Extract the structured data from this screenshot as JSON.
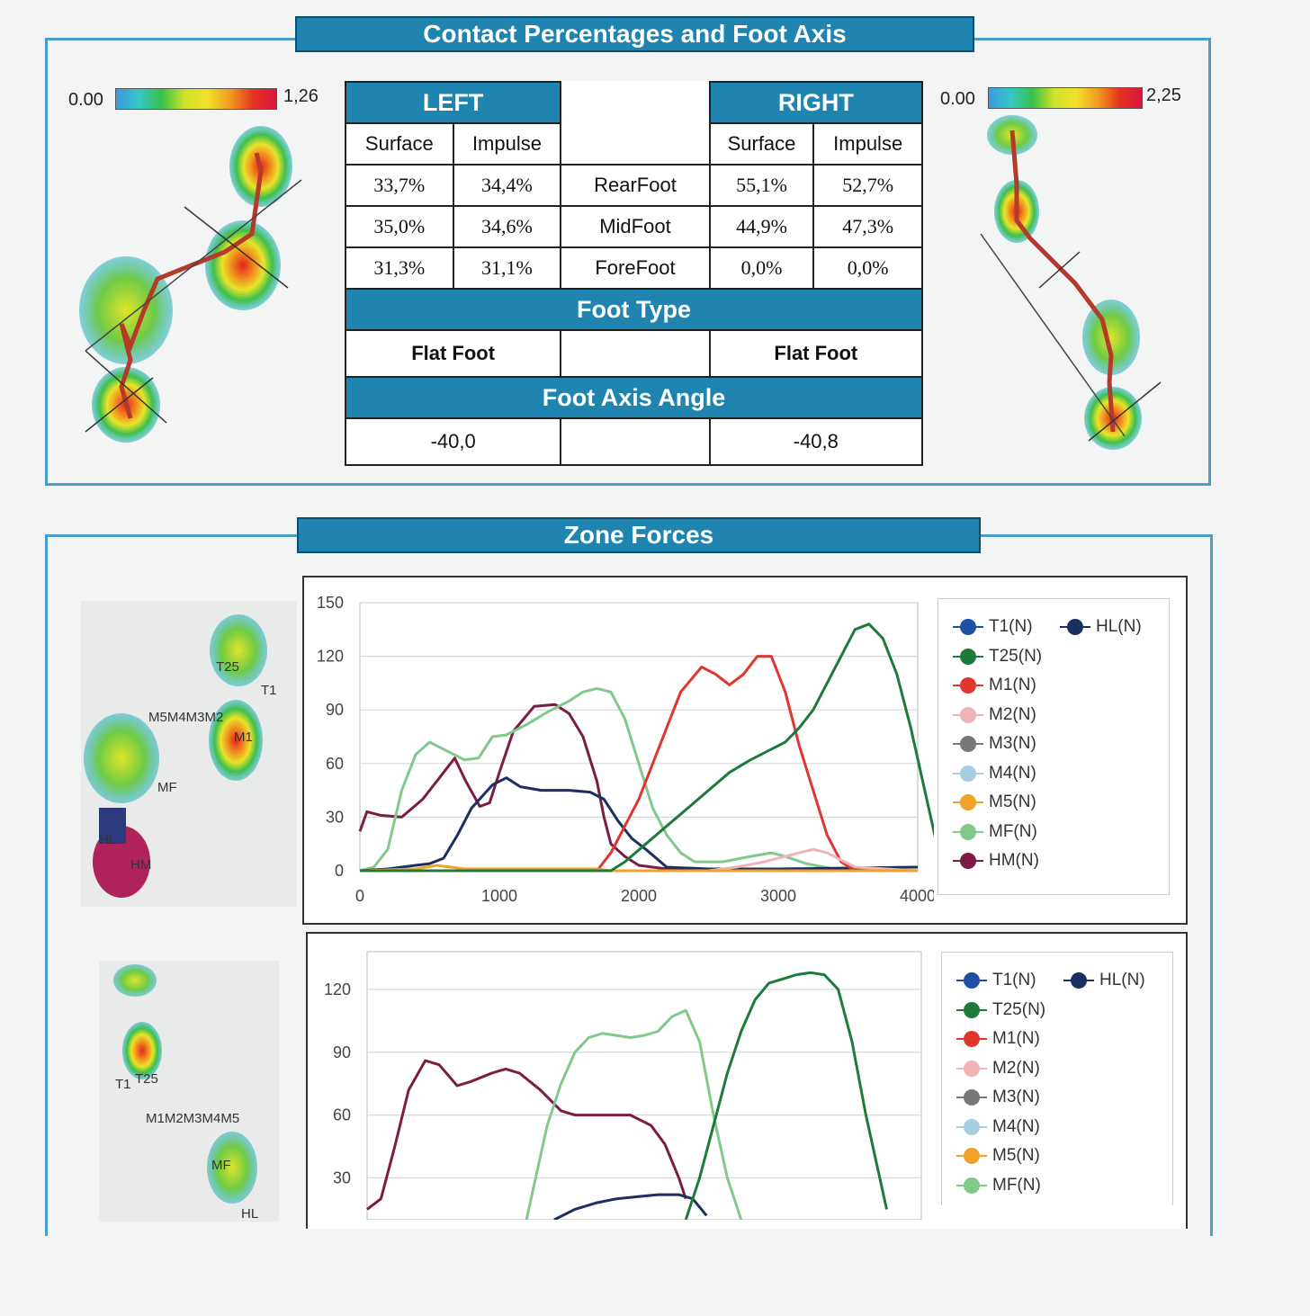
{
  "contact": {
    "title": "Contact Percentages and Foot Axis",
    "left_scale": {
      "min": "0.00",
      "max": "1,26"
    },
    "right_scale": {
      "min": "0.00",
      "max": "2,25"
    },
    "left_header": "LEFT",
    "right_header": "RIGHT",
    "col_surface": "Surface",
    "col_impulse": "Impulse",
    "rows": [
      {
        "label": "RearFoot",
        "l_surface": "33,7%",
        "l_impulse": "34,4%",
        "r_surface": "55,1%",
        "r_impulse": "52,7%"
      },
      {
        "label": "MidFoot",
        "l_surface": "35,0%",
        "l_impulse": "34,6%",
        "r_surface": "44,9%",
        "r_impulse": "47,3%"
      },
      {
        "label": "ForeFoot",
        "l_surface": "31,3%",
        "l_impulse": "31,1%",
        "r_surface": "0,0%",
        "r_impulse": "0,0%"
      }
    ],
    "foot_type_header": "Foot Type",
    "foot_type_left": "Flat Foot",
    "foot_type_right": "Flat Foot",
    "axis_angle_header": "Foot Axis Angle",
    "axis_angle_left": "-40,0",
    "axis_angle_right": "-40,8"
  },
  "zone": {
    "title": "Zone Forces",
    "left_foot_labels": [
      "T25",
      "T1",
      "M5M4M3M2",
      "M1",
      "MF",
      "HL",
      "HM"
    ],
    "right_foot_labels": [
      "T1",
      "T25",
      "M1M2M3M4M5",
      "MF",
      "HL"
    ]
  },
  "chart_data": [
    {
      "type": "line",
      "xlim": [
        0,
        4000
      ],
      "ylim": [
        0,
        150
      ],
      "xticks": [
        "0",
        "1000",
        "2000",
        "3000",
        "4000"
      ],
      "yticks": [
        "0",
        "30",
        "60",
        "90",
        "120",
        "150"
      ],
      "grid": true,
      "legend_position": "right",
      "legend": [
        "T1(N)",
        "HL(N)",
        "T25(N)",
        "M1(N)",
        "M2(N)",
        "M3(N)",
        "M4(N)",
        "M5(N)",
        "MF(N)",
        "HM(N)"
      ],
      "series": [
        {
          "name": "HM(N)",
          "color": "#7a1c45",
          "points": [
            [
              0,
              22
            ],
            [
              50,
              33
            ],
            [
              150,
              31
            ],
            [
              300,
              30
            ],
            [
              450,
              40
            ],
            [
              550,
              50
            ],
            [
              680,
              63
            ],
            [
              760,
              50
            ],
            [
              860,
              36
            ],
            [
              930,
              38
            ],
            [
              1000,
              55
            ],
            [
              1100,
              78
            ],
            [
              1250,
              92
            ],
            [
              1400,
              93
            ],
            [
              1500,
              88
            ],
            [
              1600,
              75
            ],
            [
              1700,
              50
            ],
            [
              1750,
              30
            ],
            [
              1800,
              15
            ],
            [
              1900,
              8
            ],
            [
              2000,
              3
            ],
            [
              2200,
              1
            ],
            [
              2500,
              0
            ],
            [
              4000,
              0
            ]
          ]
        },
        {
          "name": "MF(N)",
          "color": "#80c98a",
          "points": [
            [
              0,
              0
            ],
            [
              100,
              2
            ],
            [
              200,
              12
            ],
            [
              300,
              45
            ],
            [
              400,
              65
            ],
            [
              500,
              72
            ],
            [
              600,
              68
            ],
            [
              750,
              62
            ],
            [
              850,
              63
            ],
            [
              950,
              75
            ],
            [
              1050,
              76
            ],
            [
              1200,
              82
            ],
            [
              1350,
              89
            ],
            [
              1500,
              95
            ],
            [
              1600,
              100
            ],
            [
              1700,
              102
            ],
            [
              1800,
              100
            ],
            [
              1900,
              85
            ],
            [
              2000,
              60
            ],
            [
              2100,
              35
            ],
            [
              2200,
              20
            ],
            [
              2300,
              10
            ],
            [
              2400,
              5
            ],
            [
              2600,
              5
            ],
            [
              2800,
              8
            ],
            [
              2950,
              10
            ],
            [
              3050,
              8
            ],
            [
              3200,
              4
            ],
            [
              3400,
              1
            ],
            [
              4000,
              0
            ]
          ]
        },
        {
          "name": "HL(N)",
          "color": "#1b2f63",
          "points": [
            [
              0,
              0
            ],
            [
              200,
              1
            ],
            [
              400,
              3
            ],
            [
              500,
              4
            ],
            [
              600,
              7
            ],
            [
              700,
              20
            ],
            [
              800,
              35
            ],
            [
              950,
              48
            ],
            [
              1050,
              52
            ],
            [
              1150,
              47
            ],
            [
              1300,
              45
            ],
            [
              1500,
              45
            ],
            [
              1650,
              44
            ],
            [
              1750,
              40
            ],
            [
              1850,
              28
            ],
            [
              1950,
              18
            ],
            [
              2050,
              12
            ],
            [
              2200,
              2
            ],
            [
              2500,
              1
            ],
            [
              3000,
              1
            ],
            [
              4000,
              2
            ]
          ]
        },
        {
          "name": "M1(N)",
          "color": "#e0362b",
          "points": [
            [
              0,
              0
            ],
            [
              1700,
              0
            ],
            [
              1800,
              10
            ],
            [
              1900,
              25
            ],
            [
              2000,
              40
            ],
            [
              2100,
              60
            ],
            [
              2200,
              80
            ],
            [
              2300,
              100
            ],
            [
              2450,
              114
            ],
            [
              2550,
              110
            ],
            [
              2650,
              104
            ],
            [
              2750,
              110
            ],
            [
              2850,
              120
            ],
            [
              2950,
              120
            ],
            [
              3050,
              100
            ],
            [
              3150,
              70
            ],
            [
              3250,
              45
            ],
            [
              3350,
              20
            ],
            [
              3450,
              5
            ],
            [
              3550,
              0
            ],
            [
              4000,
              0
            ]
          ]
        },
        {
          "name": "M2(N)",
          "color": "#f0b3b6",
          "points": [
            [
              0,
              0
            ],
            [
              2500,
              0
            ],
            [
              2700,
              2
            ],
            [
              2900,
              5
            ],
            [
              3050,
              8
            ],
            [
              3150,
              10
            ],
            [
              3250,
              12
            ],
            [
              3350,
              10
            ],
            [
              3450,
              6
            ],
            [
              3550,
              2
            ],
            [
              4000,
              0
            ]
          ]
        },
        {
          "name": "M5(N)",
          "color": "#f0a22a",
          "points": [
            [
              0,
              0
            ],
            [
              400,
              1
            ],
            [
              550,
              3
            ],
            [
              650,
              2
            ],
            [
              750,
              1
            ],
            [
              900,
              1
            ],
            [
              1500,
              1
            ],
            [
              1700,
              1
            ],
            [
              1800,
              0
            ],
            [
              4000,
              0
            ]
          ]
        },
        {
          "name": "T25(N)",
          "color": "#1e7a3a",
          "points": [
            [
              0,
              0
            ],
            [
              1800,
              0
            ],
            [
              1900,
              5
            ],
            [
              2050,
              15
            ],
            [
              2200,
              25
            ],
            [
              2350,
              35
            ],
            [
              2500,
              45
            ],
            [
              2650,
              55
            ],
            [
              2800,
              62
            ],
            [
              2950,
              68
            ],
            [
              3050,
              72
            ],
            [
              3150,
              80
            ],
            [
              3250,
              90
            ],
            [
              3350,
              105
            ],
            [
              3450,
              120
            ],
            [
              3550,
              135
            ],
            [
              3650,
              138
            ],
            [
              3750,
              130
            ],
            [
              3850,
              110
            ],
            [
              3950,
              80
            ],
            [
              4050,
              45
            ],
            [
              4150,
              10
            ]
          ]
        }
      ]
    },
    {
      "type": "line",
      "xlim": [
        0,
        4000
      ],
      "ylim": [
        10,
        138
      ],
      "yticks": [
        "30",
        "60",
        "90",
        "120"
      ],
      "grid": true,
      "legend_position": "right",
      "legend": [
        "T1(N)",
        "HL(N)",
        "T25(N)",
        "M1(N)",
        "M2(N)",
        "M3(N)",
        "M4(N)",
        "M5(N)",
        "MF(N)"
      ],
      "series": [
        {
          "name": "HM(N)",
          "color": "#7a1c45",
          "points": [
            [
              0,
              15
            ],
            [
              100,
              20
            ],
            [
              200,
              45
            ],
            [
              300,
              72
            ],
            [
              420,
              86
            ],
            [
              520,
              84
            ],
            [
              650,
              74
            ],
            [
              750,
              76
            ],
            [
              900,
              80
            ],
            [
              1000,
              82
            ],
            [
              1100,
              80
            ],
            [
              1250,
              72
            ],
            [
              1400,
              62
            ],
            [
              1500,
              60
            ],
            [
              1700,
              60
            ],
            [
              1900,
              60
            ],
            [
              2050,
              55
            ],
            [
              2150,
              46
            ],
            [
              2250,
              30
            ],
            [
              2300,
              20
            ]
          ]
        },
        {
          "name": "MF(N)",
          "color": "#80c98a",
          "points": [
            [
              1150,
              10
            ],
            [
              1200,
              25
            ],
            [
              1300,
              55
            ],
            [
              1400,
              75
            ],
            [
              1500,
              90
            ],
            [
              1600,
              97
            ],
            [
              1700,
              99
            ],
            [
              1800,
              98
            ],
            [
              1900,
              97
            ],
            [
              2000,
              98
            ],
            [
              2100,
              100
            ],
            [
              2200,
              107
            ],
            [
              2300,
              110
            ],
            [
              2400,
              95
            ],
            [
              2500,
              60
            ],
            [
              2600,
              30
            ],
            [
              2700,
              10
            ]
          ]
        },
        {
          "name": "HL(N)",
          "color": "#1b2f63",
          "points": [
            [
              1350,
              10
            ],
            [
              1500,
              15
            ],
            [
              1650,
              18
            ],
            [
              1800,
              20
            ],
            [
              1950,
              21
            ],
            [
              2100,
              22
            ],
            [
              2250,
              22
            ],
            [
              2350,
              20
            ],
            [
              2450,
              12
            ]
          ]
        },
        {
          "name": "T25(N)",
          "color": "#1e7a3a",
          "points": [
            [
              2300,
              10
            ],
            [
              2400,
              30
            ],
            [
              2500,
              55
            ],
            [
              2600,
              80
            ],
            [
              2700,
              100
            ],
            [
              2800,
              115
            ],
            [
              2900,
              123
            ],
            [
              3000,
              125
            ],
            [
              3100,
              127
            ],
            [
              3200,
              128
            ],
            [
              3300,
              127
            ],
            [
              3400,
              120
            ],
            [
              3500,
              95
            ],
            [
              3600,
              60
            ],
            [
              3700,
              30
            ],
            [
              3750,
              15
            ]
          ]
        }
      ]
    }
  ],
  "colors": {
    "banner": "#1f84b0",
    "frame": "#4a9cc9",
    "T1": "#1f4fa3",
    "HL": "#1b2f63",
    "T25": "#1e7a3a",
    "M1": "#e0362b",
    "M2": "#f0b3b6",
    "M3": "#777777",
    "M4": "#a7cde0",
    "M5": "#f0a22a",
    "MF": "#80c98a",
    "HM": "#7a1c45"
  }
}
